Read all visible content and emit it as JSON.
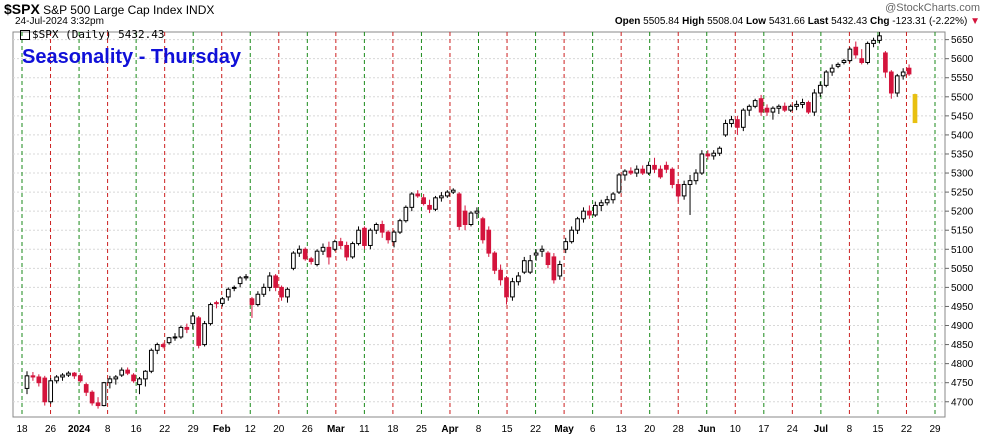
{
  "header": {
    "symbol": "$SPX",
    "description": "S&P 500 Large Cap Index",
    "exchange": "INDX",
    "datetime": "24-Jul-2024 3:32pm",
    "watermark": "@StockCharts.com",
    "open_label": "Open",
    "open": "5505.84",
    "high_label": "High",
    "high": "5508.04",
    "low_label": "Low",
    "low": "5431.66",
    "last_label": "Last",
    "last": "5432.43",
    "chg_label": "Chg",
    "chg": "-123.31 (-2.22%)",
    "chg_arrow": "▼"
  },
  "legend": {
    "text": "$SPX (Daily) 5432.43"
  },
  "colors": {
    "up": "#000000",
    "down": "#d4143c",
    "today": "#e8c010",
    "thursday_line": "#1a8a1a",
    "other_line": "#cc2020",
    "title": "#1010d8"
  },
  "chart_data": {
    "type": "candlestick",
    "title": "Seasonality - Thursday",
    "ylim": [
      4660,
      5670
    ],
    "y_ticks": [
      4700,
      4750,
      4800,
      4850,
      4900,
      4950,
      5000,
      5050,
      5100,
      5150,
      5200,
      5250,
      5300,
      5350,
      5400,
      5450,
      5500,
      5550,
      5600,
      5650
    ],
    "x_tick_labels": [
      "18",
      "26",
      "2024",
      "8",
      "16",
      "22",
      "29",
      "Feb",
      "12",
      "20",
      "26",
      "Mar",
      "11",
      "18",
      "25",
      "Apr",
      "8",
      "15",
      "22",
      "May",
      "6",
      "13",
      "20",
      "28",
      "Jun",
      "10",
      "17",
      "24",
      "Jul",
      "8",
      "15",
      "22",
      "29"
    ],
    "bold_tick_labels": [
      "2024",
      "Feb",
      "Mar",
      "Apr",
      "May",
      "Jun",
      "Jul"
    ],
    "vertical_line_pattern": "dashed green on Thursdays, dashed red on other weekly markers",
    "candles": [
      {
        "o": 4735,
        "h": 4780,
        "l": 4720,
        "c": 4768
      },
      {
        "o": 4768,
        "h": 4778,
        "l": 4755,
        "c": 4765
      },
      {
        "o": 4765,
        "h": 4772,
        "l": 4740,
        "c": 4750
      },
      {
        "o": 4762,
        "h": 4768,
        "l": 4690,
        "c": 4700
      },
      {
        "o": 4700,
        "h": 4762,
        "l": 4695,
        "c": 4755
      },
      {
        "o": 4755,
        "h": 4770,
        "l": 4748,
        "c": 4765
      },
      {
        "o": 4765,
        "h": 4775,
        "l": 4755,
        "c": 4770
      },
      {
        "o": 4770,
        "h": 4780,
        "l": 4765,
        "c": 4775
      },
      {
        "o": 4775,
        "h": 4778,
        "l": 4760,
        "c": 4768
      },
      {
        "o": 4768,
        "h": 4775,
        "l": 4750,
        "c": 4755
      },
      {
        "o": 4745,
        "h": 4750,
        "l": 4715,
        "c": 4725
      },
      {
        "o": 4725,
        "h": 4730,
        "l": 4690,
        "c": 4697
      },
      {
        "o": 4697,
        "h": 4712,
        "l": 4682,
        "c": 4690
      },
      {
        "o": 4690,
        "h": 4752,
        "l": 4688,
        "c": 4750
      },
      {
        "o": 4750,
        "h": 4768,
        "l": 4735,
        "c": 4760
      },
      {
        "o": 4760,
        "h": 4770,
        "l": 4745,
        "c": 4765
      },
      {
        "o": 4770,
        "h": 4790,
        "l": 4765,
        "c": 4783
      },
      {
        "o": 4783,
        "h": 4790,
        "l": 4770,
        "c": 4775
      },
      {
        "o": 4770,
        "h": 4775,
        "l": 4750,
        "c": 4755
      },
      {
        "o": 4745,
        "h": 4765,
        "l": 4720,
        "c": 4760
      },
      {
        "o": 4760,
        "h": 4783,
        "l": 4740,
        "c": 4780
      },
      {
        "o": 4780,
        "h": 4840,
        "l": 4775,
        "c": 4835
      },
      {
        "o": 4835,
        "h": 4855,
        "l": 4825,
        "c": 4850
      },
      {
        "o": 4850,
        "h": 4855,
        "l": 4840,
        "c": 4845
      },
      {
        "o": 4855,
        "h": 4870,
        "l": 4850,
        "c": 4868
      },
      {
        "o": 4868,
        "h": 4880,
        "l": 4860,
        "c": 4870
      },
      {
        "o": 4870,
        "h": 4900,
        "l": 4865,
        "c": 4895
      },
      {
        "o": 4895,
        "h": 4905,
        "l": 4880,
        "c": 4890
      },
      {
        "o": 4905,
        "h": 4935,
        "l": 4890,
        "c": 4925
      },
      {
        "o": 4920,
        "h": 4925,
        "l": 4840,
        "c": 4848
      },
      {
        "o": 4850,
        "h": 4912,
        "l": 4845,
        "c": 4905
      },
      {
        "o": 4905,
        "h": 4960,
        "l": 4900,
        "c": 4955
      },
      {
        "o": 4960,
        "h": 4965,
        "l": 4945,
        "c": 4958
      },
      {
        "o": 4958,
        "h": 4975,
        "l": 4950,
        "c": 4970
      },
      {
        "o": 4975,
        "h": 5000,
        "l": 4965,
        "c": 4995
      },
      {
        "o": 4998,
        "h": 5005,
        "l": 4990,
        "c": 5000
      },
      {
        "o": 5010,
        "h": 5030,
        "l": 5000,
        "c": 5025
      },
      {
        "o": 5025,
        "h": 5035,
        "l": 5018,
        "c": 5028
      },
      {
        "o": 4970,
        "h": 4975,
        "l": 4920,
        "c": 4955
      },
      {
        "o": 4955,
        "h": 4990,
        "l": 4950,
        "c": 4982
      },
      {
        "o": 4982,
        "h": 5010,
        "l": 4975,
        "c": 5000
      },
      {
        "o": 5000,
        "h": 5040,
        "l": 4990,
        "c": 5030
      },
      {
        "o": 5030,
        "h": 5035,
        "l": 4990,
        "c": 5000
      },
      {
        "o": 5000,
        "h": 5005,
        "l": 4965,
        "c": 4975
      },
      {
        "o": 4975,
        "h": 5000,
        "l": 4960,
        "c": 4995
      },
      {
        "o": 5050,
        "h": 5095,
        "l": 5045,
        "c": 5090
      },
      {
        "o": 5090,
        "h": 5110,
        "l": 5080,
        "c": 5100
      },
      {
        "o": 5100,
        "h": 5105,
        "l": 5070,
        "c": 5075
      },
      {
        "o": 5075,
        "h": 5080,
        "l": 5060,
        "c": 5068
      },
      {
        "o": 5060,
        "h": 5100,
        "l": 5055,
        "c": 5095
      },
      {
        "o": 5095,
        "h": 5115,
        "l": 5085,
        "c": 5105
      },
      {
        "o": 5105,
        "h": 5120,
        "l": 5060,
        "c": 5080
      },
      {
        "o": 5100,
        "h": 5125,
        "l": 5095,
        "c": 5120
      },
      {
        "o": 5120,
        "h": 5130,
        "l": 5100,
        "c": 5110
      },
      {
        "o": 5110,
        "h": 5120,
        "l": 5070,
        "c": 5080
      },
      {
        "o": 5080,
        "h": 5120,
        "l": 5075,
        "c": 5115
      },
      {
        "o": 5115,
        "h": 5160,
        "l": 5110,
        "c": 5150
      },
      {
        "o": 5155,
        "h": 5160,
        "l": 5100,
        "c": 5110
      },
      {
        "o": 5110,
        "h": 5155,
        "l": 5100,
        "c": 5150
      },
      {
        "o": 5150,
        "h": 5170,
        "l": 5140,
        "c": 5165
      },
      {
        "o": 5165,
        "h": 5175,
        "l": 5130,
        "c": 5145
      },
      {
        "o": 5145,
        "h": 5150,
        "l": 5115,
        "c": 5125
      },
      {
        "o": 5120,
        "h": 5150,
        "l": 5105,
        "c": 5145
      },
      {
        "o": 5145,
        "h": 5180,
        "l": 5140,
        "c": 5175
      },
      {
        "o": 5175,
        "h": 5215,
        "l": 5170,
        "c": 5210
      },
      {
        "o": 5210,
        "h": 5250,
        "l": 5200,
        "c": 5245
      },
      {
        "o": 5245,
        "h": 5255,
        "l": 5235,
        "c": 5240
      },
      {
        "o": 5235,
        "h": 5245,
        "l": 5215,
        "c": 5220
      },
      {
        "o": 5215,
        "h": 5230,
        "l": 5195,
        "c": 5205
      },
      {
        "o": 5205,
        "h": 5240,
        "l": 5200,
        "c": 5235
      },
      {
        "o": 5235,
        "h": 5250,
        "l": 5225,
        "c": 5240
      },
      {
        "o": 5240,
        "h": 5255,
        "l": 5235,
        "c": 5250
      },
      {
        "o": 5250,
        "h": 5260,
        "l": 5245,
        "c": 5255
      },
      {
        "o": 5245,
        "h": 5250,
        "l": 5150,
        "c": 5160
      },
      {
        "o": 5200,
        "h": 5215,
        "l": 5150,
        "c": 5165
      },
      {
        "o": 5165,
        "h": 5200,
        "l": 5160,
        "c": 5195
      },
      {
        "o": 5195,
        "h": 5210,
        "l": 5180,
        "c": 5200
      },
      {
        "o": 5180,
        "h": 5185,
        "l": 5115,
        "c": 5125
      },
      {
        "o": 5150,
        "h": 5160,
        "l": 5080,
        "c": 5090
      },
      {
        "o": 5090,
        "h": 5095,
        "l": 5035,
        "c": 5045
      },
      {
        "o": 5045,
        "h": 5060,
        "l": 5005,
        "c": 5020
      },
      {
        "o": 5025,
        "h": 5030,
        "l": 4955,
        "c": 4975
      },
      {
        "o": 4975,
        "h": 5025,
        "l": 4965,
        "c": 5015
      },
      {
        "o": 5015,
        "h": 5040,
        "l": 5005,
        "c": 5030
      },
      {
        "o": 5040,
        "h": 5080,
        "l": 5035,
        "c": 5070
      },
      {
        "o": 5040,
        "h": 5085,
        "l": 5035,
        "c": 5070
      },
      {
        "o": 5085,
        "h": 5100,
        "l": 5070,
        "c": 5090
      },
      {
        "o": 5095,
        "h": 5110,
        "l": 5080,
        "c": 5100
      },
      {
        "o": 5090,
        "h": 5095,
        "l": 5050,
        "c": 5060
      },
      {
        "o": 5080,
        "h": 5090,
        "l": 5010,
        "c": 5020
      },
      {
        "o": 5030,
        "h": 5070,
        "l": 5020,
        "c": 5060
      },
      {
        "o": 5100,
        "h": 5130,
        "l": 5090,
        "c": 5120
      },
      {
        "o": 5120,
        "h": 5160,
        "l": 5115,
        "c": 5150
      },
      {
        "o": 5150,
        "h": 5185,
        "l": 5140,
        "c": 5180
      },
      {
        "o": 5180,
        "h": 5210,
        "l": 5170,
        "c": 5200
      },
      {
        "o": 5200,
        "h": 5215,
        "l": 5180,
        "c": 5190
      },
      {
        "o": 5190,
        "h": 5225,
        "l": 5185,
        "c": 5215
      },
      {
        "o": 5215,
        "h": 5230,
        "l": 5200,
        "c": 5222
      },
      {
        "o": 5222,
        "h": 5240,
        "l": 5215,
        "c": 5230
      },
      {
        "o": 5230,
        "h": 5250,
        "l": 5220,
        "c": 5245
      },
      {
        "o": 5250,
        "h": 5300,
        "l": 5245,
        "c": 5295
      },
      {
        "o": 5295,
        "h": 5310,
        "l": 5280,
        "c": 5305
      },
      {
        "o": 5305,
        "h": 5315,
        "l": 5295,
        "c": 5300
      },
      {
        "o": 5300,
        "h": 5320,
        "l": 5290,
        "c": 5310
      },
      {
        "o": 5310,
        "h": 5320,
        "l": 5295,
        "c": 5300
      },
      {
        "o": 5300,
        "h": 5330,
        "l": 5295,
        "c": 5320
      },
      {
        "o": 5320,
        "h": 5340,
        "l": 5300,
        "c": 5310
      },
      {
        "o": 5310,
        "h": 5320,
        "l": 5285,
        "c": 5290
      },
      {
        "o": 5320,
        "h": 5330,
        "l": 5300,
        "c": 5310
      },
      {
        "o": 5310,
        "h": 5315,
        "l": 5260,
        "c": 5270
      },
      {
        "o": 5270,
        "h": 5280,
        "l": 5225,
        "c": 5240
      },
      {
        "o": 5240,
        "h": 5280,
        "l": 5230,
        "c": 5270
      },
      {
        "o": 5270,
        "h": 5295,
        "l": 5190,
        "c": 5280
      },
      {
        "o": 5280,
        "h": 5310,
        "l": 5270,
        "c": 5300
      },
      {
        "o": 5300,
        "h": 5360,
        "l": 5295,
        "c": 5350
      },
      {
        "o": 5350,
        "h": 5360,
        "l": 5335,
        "c": 5345
      },
      {
        "o": 5345,
        "h": 5360,
        "l": 5335,
        "c": 5352
      },
      {
        "o": 5352,
        "h": 5370,
        "l": 5345,
        "c": 5365
      },
      {
        "o": 5400,
        "h": 5440,
        "l": 5395,
        "c": 5430
      },
      {
        "o": 5430,
        "h": 5450,
        "l": 5420,
        "c": 5440
      },
      {
        "o": 5440,
        "h": 5450,
        "l": 5400,
        "c": 5420
      },
      {
        "o": 5420,
        "h": 5470,
        "l": 5410,
        "c": 5465
      },
      {
        "o": 5465,
        "h": 5480,
        "l": 5450,
        "c": 5475
      },
      {
        "o": 5475,
        "h": 5495,
        "l": 5470,
        "c": 5490
      },
      {
        "o": 5495,
        "h": 5505,
        "l": 5450,
        "c": 5460
      },
      {
        "o": 5470,
        "h": 5480,
        "l": 5450,
        "c": 5460
      },
      {
        "o": 5460,
        "h": 5475,
        "l": 5440,
        "c": 5470
      },
      {
        "o": 5470,
        "h": 5480,
        "l": 5455,
        "c": 5475
      },
      {
        "o": 5475,
        "h": 5485,
        "l": 5460,
        "c": 5465
      },
      {
        "o": 5465,
        "h": 5480,
        "l": 5460,
        "c": 5475
      },
      {
        "o": 5475,
        "h": 5490,
        "l": 5465,
        "c": 5480
      },
      {
        "o": 5480,
        "h": 5495,
        "l": 5470,
        "c": 5485
      },
      {
        "o": 5485,
        "h": 5490,
        "l": 5455,
        "c": 5460
      },
      {
        "o": 5460,
        "h": 5520,
        "l": 5450,
        "c": 5510
      },
      {
        "o": 5510,
        "h": 5540,
        "l": 5500,
        "c": 5530
      },
      {
        "o": 5530,
        "h": 5570,
        "l": 5525,
        "c": 5565
      },
      {
        "o": 5565,
        "h": 5585,
        "l": 5555,
        "c": 5575
      },
      {
        "o": 5580,
        "h": 5590,
        "l": 5575,
        "c": 5585
      },
      {
        "o": 5590,
        "h": 5600,
        "l": 5585,
        "c": 5595
      },
      {
        "o": 5595,
        "h": 5630,
        "l": 5590,
        "c": 5625
      },
      {
        "o": 5630,
        "h": 5645,
        "l": 5600,
        "c": 5610
      },
      {
        "o": 5600,
        "h": 5625,
        "l": 5585,
        "c": 5590
      },
      {
        "o": 5590,
        "h": 5645,
        "l": 5585,
        "c": 5640
      },
      {
        "o": 5640,
        "h": 5655,
        "l": 5630,
        "c": 5648
      },
      {
        "o": 5648,
        "h": 5670,
        "l": 5640,
        "c": 5660
      },
      {
        "o": 5615,
        "h": 5620,
        "l": 5550,
        "c": 5565
      },
      {
        "o": 5565,
        "h": 5570,
        "l": 5495,
        "c": 5510
      },
      {
        "o": 5510,
        "h": 5560,
        "l": 5500,
        "c": 5555
      },
      {
        "o": 5555,
        "h": 5575,
        "l": 5545,
        "c": 5565
      },
      {
        "o": 5575,
        "h": 5585,
        "l": 5555,
        "c": 5560
      },
      {
        "o": 5505.84,
        "h": 5508.04,
        "l": 5431.66,
        "c": 5432.43
      }
    ]
  }
}
